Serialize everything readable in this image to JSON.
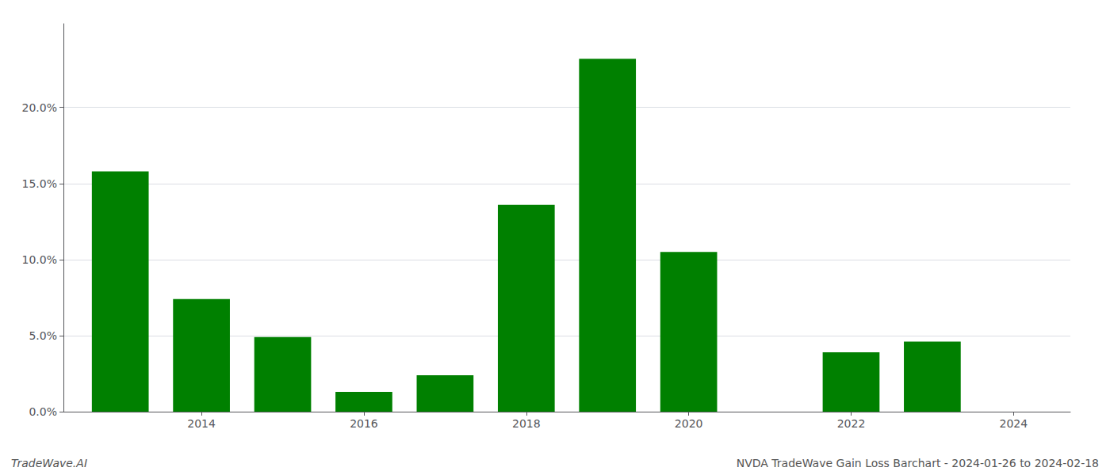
{
  "chart_data": {
    "type": "bar",
    "x": [
      2013,
      2014,
      2015,
      2016,
      2017,
      2018,
      2019,
      2020,
      2021,
      2022,
      2023
    ],
    "values": [
      0.158,
      0.074,
      0.049,
      0.013,
      0.024,
      0.136,
      0.232,
      0.105,
      0.0,
      0.039,
      0.046
    ],
    "color": "#008000",
    "xlim": [
      2012.3,
      2024.7
    ],
    "xticks": [
      2014,
      2016,
      2018,
      2020,
      2022,
      2024
    ],
    "ylim": [
      0,
      0.255
    ],
    "yticks": [
      {
        "value": 0.0,
        "label": "0.0%"
      },
      {
        "value": 0.05,
        "label": "5.0%"
      },
      {
        "value": 0.1,
        "label": "10.0%"
      },
      {
        "value": 0.15,
        "label": "15.0%"
      },
      {
        "value": 0.2,
        "label": "20.0%"
      }
    ],
    "grid": true,
    "annotations": [
      "TradeWave.AI",
      "NVDA TradeWave Gain Loss Barchart - 2024-01-26 to 2024-02-18"
    ]
  }
}
